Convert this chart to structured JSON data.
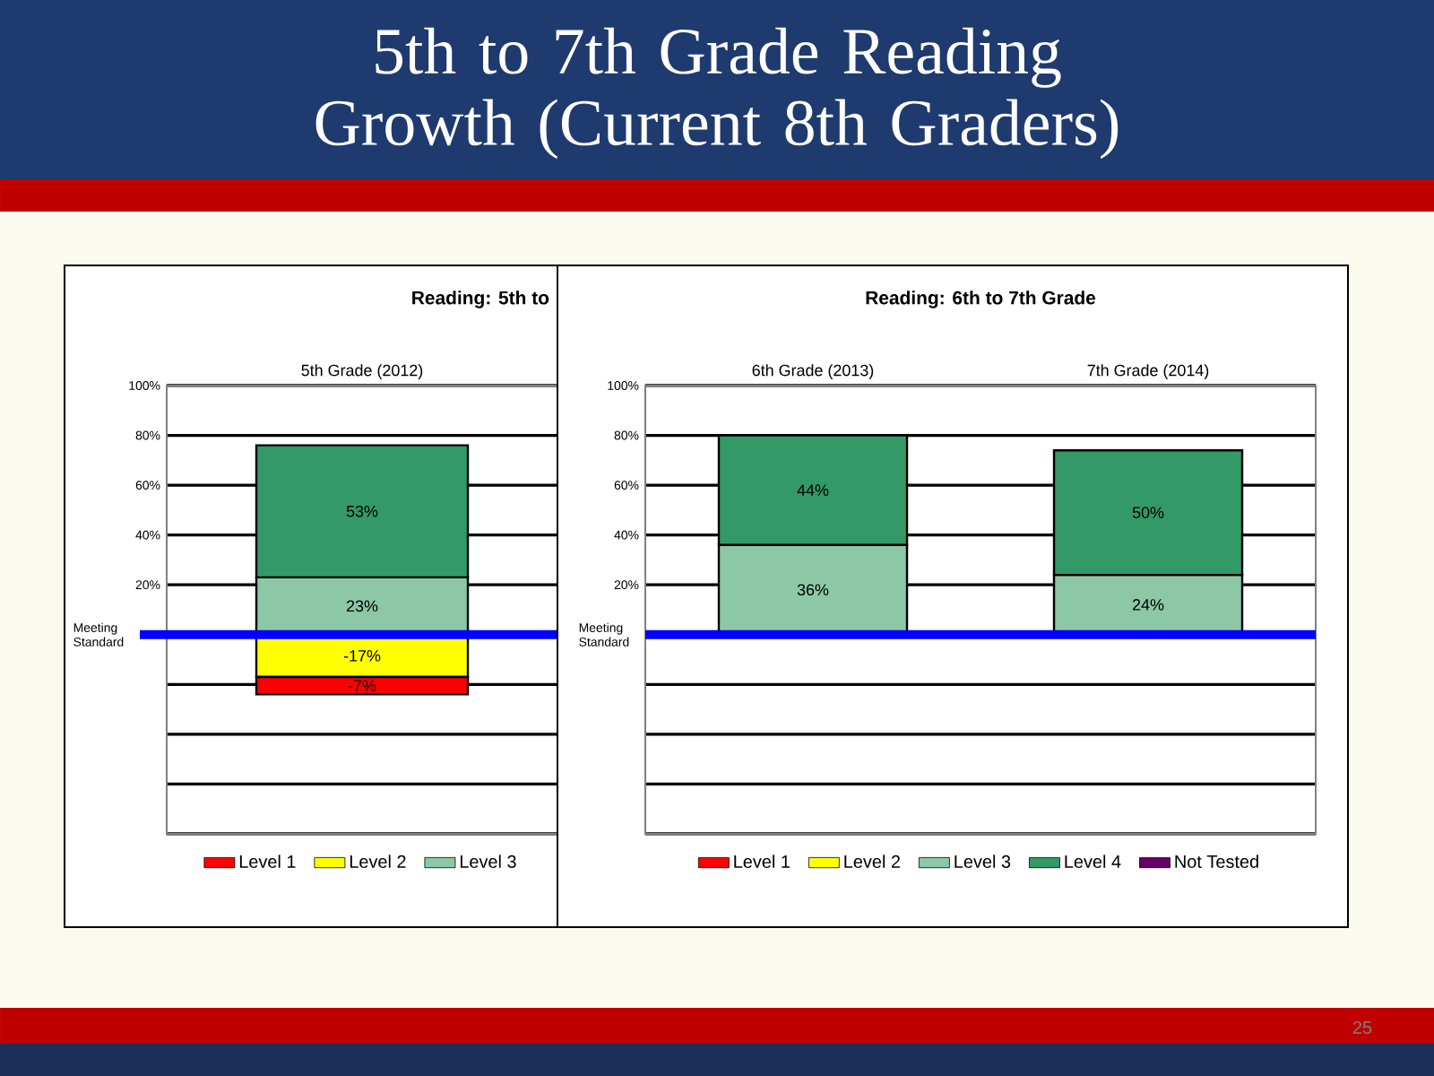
{
  "chart_data": [
    {
      "type": "bar",
      "title": "5th to 7th Grade Reading Growth (Current 8th Graders)",
      "subtitle": "Reading: 5th to",
      "categories": [
        "5th Grade (2012)"
      ],
      "stacked": true,
      "series": [
        {
          "name": "Level 1",
          "color": "#ff0000",
          "values": [
            -7
          ],
          "value_labels": [
            "-7%"
          ]
        },
        {
          "name": "Level 2",
          "color": "#ffff00",
          "values": [
            -17
          ],
          "value_labels": [
            "-17%"
          ]
        },
        {
          "name": "Level 3",
          "color": "#8cc8a6",
          "values": [
            23
          ],
          "value_labels": [
            "23%"
          ]
        },
        {
          "color": "#339966",
          "values": [
            53
          ],
          "value_labels": [
            "53%"
          ]
        }
      ],
      "ylim": [
        -80,
        100
      ],
      "yticks": [
        {
          "value": 100,
          "label": "100%"
        },
        {
          "value": 80,
          "label": "80%"
        },
        {
          "value": 60,
          "label": "60%"
        },
        {
          "value": 40,
          "label": "40%"
        },
        {
          "value": 20,
          "label": "20%"
        },
        {
          "value": 0,
          "label": null
        },
        {
          "value": -20,
          "label": null
        },
        {
          "value": -40,
          "label": null
        },
        {
          "value": -60,
          "label": null
        },
        {
          "value": -80,
          "label": null
        }
      ],
      "grid": "y",
      "legend": "bottom",
      "ref_lines": [
        {
          "axis": "y",
          "value": 0,
          "label": "Meeting Standard",
          "color": "#0000ff"
        }
      ]
    },
    {
      "type": "bar",
      "subtitle": "Reading: 6th to 7th Grade",
      "categories": [
        "6th Grade (2013)",
        "7th Grade (2014)"
      ],
      "stacked": true,
      "series": [
        {
          "name": "Level 1",
          "color": "#ff0000",
          "values": [
            null,
            null
          ]
        },
        {
          "name": "Level 2",
          "color": "#ffff00",
          "values": [
            null,
            null
          ]
        },
        {
          "name": "Level 3",
          "color": "#8cc8a6",
          "values": [
            36,
            24
          ],
          "value_labels": [
            "36%",
            "24%"
          ]
        },
        {
          "name": "Level 4",
          "color": "#339966",
          "values": [
            44,
            50
          ],
          "value_labels": [
            "44%",
            "50%"
          ]
        },
        {
          "name": "Not Tested",
          "color": "#660066",
          "values": [
            null,
            null
          ]
        }
      ],
      "ylim": [
        -80,
        100
      ],
      "yticks": [
        {
          "value": 100,
          "label": "100%"
        },
        {
          "value": 80,
          "label": "80%"
        },
        {
          "value": 60,
          "label": "60%"
        },
        {
          "value": 40,
          "label": "40%"
        },
        {
          "value": 20,
          "label": "20%"
        },
        {
          "value": 0,
          "label": null
        },
        {
          "value": -20,
          "label": null
        },
        {
          "value": -40,
          "label": null
        },
        {
          "value": -60,
          "label": null
        },
        {
          "value": -80,
          "label": null
        }
      ],
      "grid": "y",
      "legend": "bottom",
      "ref_lines": [
        {
          "axis": "y",
          "value": 0,
          "label": "Meeting Standard",
          "color": "#0000ff"
        }
      ],
      "annotations": [
        "25"
      ]
    }
  ]
}
